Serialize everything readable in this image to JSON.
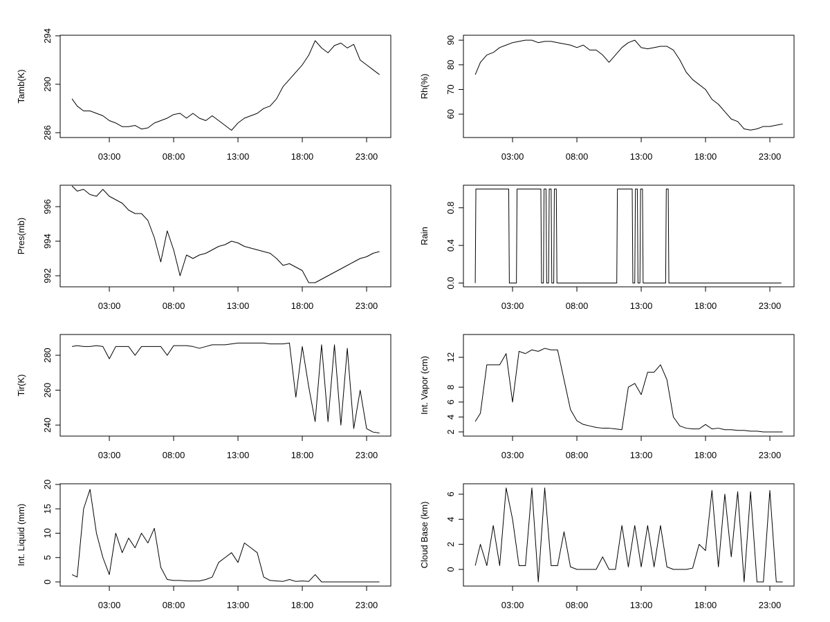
{
  "chart_data": [
    {
      "type": "line",
      "ylabel": "Tamb(K)",
      "x": [
        0.1,
        0.5,
        1,
        1.5,
        2,
        2.5,
        3,
        3.5,
        4,
        4.5,
        5,
        5.5,
        6,
        6.5,
        7,
        7.5,
        8,
        8.5,
        9,
        9.5,
        10,
        10.5,
        11,
        11.5,
        12,
        12.5,
        13,
        13.5,
        14,
        14.5,
        15,
        15.5,
        16,
        16.5,
        17,
        17.5,
        18,
        18.5,
        19,
        19.5,
        20,
        20.5,
        21,
        21.5,
        22,
        22.5,
        23,
        23.5,
        24
      ],
      "values": [
        288.8,
        288.2,
        287.8,
        287.8,
        287.6,
        287.4,
        287.0,
        286.8,
        286.5,
        286.5,
        286.6,
        286.3,
        286.4,
        286.8,
        287.0,
        287.2,
        287.5,
        287.6,
        287.2,
        287.6,
        287.2,
        287.0,
        287.4,
        287.0,
        286.6,
        286.2,
        286.8,
        287.2,
        287.4,
        287.6,
        288.0,
        288.2,
        288.8,
        289.8,
        290.4,
        291.0,
        291.6,
        292.4,
        293.6,
        293.0,
        292.6,
        293.2,
        293.4,
        293.0,
        293.3,
        292.0,
        291.6,
        291.2,
        290.8
      ],
      "color": "#000000",
      "xlim": [
        -0.82,
        24.88
      ],
      "ylim": [
        285.6,
        294.05
      ],
      "yticks": [
        286,
        290,
        294
      ],
      "xticks": [
        {
          "value": 3,
          "label": "03:00"
        },
        {
          "value": 8,
          "label": "08:00"
        },
        {
          "value": 13,
          "label": "13:00"
        },
        {
          "value": 18,
          "label": "18:00"
        },
        {
          "value": 23,
          "label": "23:00"
        }
      ]
    },
    {
      "type": "line",
      "ylabel": "Rh(%)",
      "x": [
        0.1,
        0.5,
        1,
        1.5,
        2,
        2.5,
        3,
        3.5,
        4,
        4.5,
        5,
        5.5,
        6,
        6.5,
        7,
        7.5,
        8,
        8.5,
        9,
        9.5,
        10,
        10.5,
        11,
        11.5,
        12,
        12.5,
        13,
        13.5,
        14,
        14.5,
        15,
        15.5,
        16,
        16.5,
        17,
        17.5,
        18,
        18.5,
        19,
        19.5,
        20,
        20.5,
        21,
        21.5,
        22,
        22.5,
        23,
        23.5,
        24
      ],
      "values": [
        76,
        81,
        84,
        85,
        87,
        88,
        89,
        89.5,
        90,
        90,
        89,
        89.5,
        89.5,
        89,
        88.5,
        88,
        87,
        88,
        86,
        86,
        84,
        81,
        84,
        87,
        89,
        90,
        87,
        86.5,
        87,
        87.5,
        87.5,
        86,
        82,
        77,
        74,
        72,
        70,
        66,
        64,
        61,
        58,
        57,
        54,
        53.5,
        54,
        55,
        55,
        55.5,
        56
      ],
      "color": "#000000",
      "xlim": [
        -0.82,
        24.88
      ],
      "ylim": [
        50.5,
        92
      ],
      "yticks": [
        60,
        70,
        80,
        90
      ],
      "xticks": [
        {
          "value": 3,
          "label": "03:00"
        },
        {
          "value": 8,
          "label": "08:00"
        },
        {
          "value": 13,
          "label": "13:00"
        },
        {
          "value": 18,
          "label": "18:00"
        },
        {
          "value": 23,
          "label": "23:00"
        }
      ]
    },
    {
      "type": "line",
      "ylabel": "Pres(mb)",
      "x": [
        0.1,
        0.5,
        1,
        1.5,
        2,
        2.5,
        3,
        3.5,
        4,
        4.5,
        5,
        5.5,
        6,
        6.5,
        7,
        7.5,
        8,
        8.5,
        9,
        9.5,
        10,
        10.5,
        11,
        11.5,
        12,
        12.5,
        13,
        13.5,
        14,
        14.5,
        15,
        15.5,
        16,
        16.5,
        17,
        17.5,
        18,
        18.5,
        19,
        19.5,
        20,
        20.5,
        21,
        21.5,
        22,
        22.5,
        23,
        23.5,
        24
      ],
      "values": [
        997.2,
        996.9,
        997.0,
        996.7,
        996.6,
        997.0,
        996.6,
        996.4,
        996.2,
        995.8,
        995.6,
        995.6,
        995.2,
        994.2,
        992.8,
        994.6,
        993.5,
        992.0,
        993.2,
        993.0,
        993.2,
        993.3,
        993.5,
        993.7,
        993.8,
        994.0,
        993.9,
        993.7,
        993.6,
        993.5,
        993.4,
        993.3,
        993.0,
        992.6,
        992.7,
        992.5,
        992.3,
        991.6,
        991.6,
        991.8,
        992.0,
        992.2,
        992.4,
        992.6,
        992.8,
        993.0,
        993.1,
        993.3,
        993.4
      ],
      "color": "#000000",
      "xlim": [
        -0.82,
        24.88
      ],
      "ylim": [
        991.36,
        997.24
      ],
      "yticks": [
        992,
        994,
        996
      ],
      "xticks": [
        {
          "value": 3,
          "label": "03:00"
        },
        {
          "value": 8,
          "label": "08:00"
        },
        {
          "value": 13,
          "label": "13:00"
        },
        {
          "value": 18,
          "label": "18:00"
        },
        {
          "value": 23,
          "label": "23:00"
        }
      ]
    },
    {
      "type": "line",
      "ylabel": "Rain",
      "x": [
        0.1,
        0.15,
        2.7,
        2.75,
        3.3,
        3.35,
        5.2,
        5.25,
        5.4,
        5.45,
        5.6,
        5.65,
        5.8,
        5.85,
        6.0,
        6.05,
        6.2,
        6.25,
        6.4,
        6.45,
        11.1,
        11.15,
        12.3,
        12.35,
        12.5,
        12.55,
        12.7,
        12.75,
        12.9,
        12.95,
        13.1,
        13.15,
        14.9,
        14.95,
        15.1,
        15.15,
        23.9
      ],
      "values": [
        0,
        1,
        1,
        0,
        0,
        1,
        1,
        0,
        0,
        1,
        1,
        0,
        0,
        1,
        1,
        0,
        0,
        1,
        1,
        0,
        0,
        1,
        1,
        0,
        0,
        1,
        1,
        0,
        0,
        1,
        1,
        0,
        0,
        1,
        1,
        0,
        0
      ],
      "color": "#000000",
      "xlim": [
        -0.82,
        24.88
      ],
      "ylim": [
        -0.04,
        1.04
      ],
      "yticks": [
        {
          "value": 0,
          "label": "0.0"
        },
        0.4,
        0.8
      ],
      "xticks": [
        {
          "value": 3,
          "label": "03:00"
        },
        {
          "value": 8,
          "label": "08:00"
        },
        {
          "value": 13,
          "label": "13:00"
        },
        {
          "value": 18,
          "label": "18:00"
        },
        {
          "value": 23,
          "label": "23:00"
        }
      ]
    },
    {
      "type": "line",
      "ylabel": "Tir(K)",
      "x": [
        0.1,
        0.5,
        1,
        1.5,
        2,
        2.5,
        3,
        3.5,
        4,
        4.5,
        5,
        5.5,
        6,
        6.5,
        7,
        7.5,
        8,
        8.5,
        9,
        9.5,
        10,
        10.5,
        11,
        11.5,
        12,
        12.5,
        13,
        13.5,
        14,
        14.5,
        15,
        15.5,
        16,
        16.5,
        17,
        17.5,
        18,
        18.5,
        19,
        19.5,
        20,
        20.5,
        21,
        21.5,
        22,
        22.5,
        23,
        23.5,
        24
      ],
      "values": [
        285,
        285.5,
        285,
        285,
        285.5,
        285,
        278,
        285,
        285,
        285,
        280,
        285,
        285,
        285,
        285,
        280,
        285.5,
        285.5,
        285.5,
        285,
        284,
        285,
        286,
        286,
        286,
        286.5,
        287,
        287,
        287,
        287,
        287,
        286.5,
        286.5,
        286.5,
        287,
        256,
        285,
        262,
        242,
        286,
        242,
        286,
        240,
        284,
        238,
        260,
        238,
        236,
        235.5
      ],
      "color": "#000000",
      "xlim": [
        -0.82,
        24.88
      ],
      "ylim": [
        233.7,
        291.9
      ],
      "yticks": [
        240,
        260,
        280
      ],
      "xticks": [
        {
          "value": 3,
          "label": "03:00"
        },
        {
          "value": 8,
          "label": "08:00"
        },
        {
          "value": 13,
          "label": "13:00"
        },
        {
          "value": 18,
          "label": "18:00"
        },
        {
          "value": 23,
          "label": "23:00"
        }
      ]
    },
    {
      "type": "line",
      "ylabel": "Int. Vapor (cm)",
      "x": [
        0.1,
        0.5,
        1,
        1.5,
        2,
        2.5,
        3,
        3.5,
        4,
        4.5,
        5,
        5.5,
        6,
        6.5,
        7,
        7.5,
        8,
        8.5,
        9,
        9.5,
        10,
        10.5,
        11,
        11.5,
        12,
        12.5,
        13,
        13.5,
        14,
        14.5,
        15,
        15.5,
        16,
        16.5,
        17,
        17.5,
        18,
        18.5,
        19,
        19.5,
        20,
        20.5,
        21,
        21.5,
        22,
        22.5,
        23,
        23.5,
        24
      ],
      "values": [
        3.4,
        4.5,
        11,
        11,
        11,
        12.5,
        6,
        12.8,
        12.5,
        13,
        12.8,
        13.2,
        13,
        13,
        9,
        5,
        3.5,
        3,
        2.8,
        2.6,
        2.5,
        2.5,
        2.4,
        2.3,
        8,
        8.5,
        7,
        10,
        10,
        11,
        9,
        4,
        2.8,
        2.5,
        2.4,
        2.4,
        3,
        2.4,
        2.5,
        2.3,
        2.3,
        2.2,
        2.2,
        2.1,
        2.1,
        2.0,
        2.0,
        2.0,
        2.0
      ],
      "color": "#000000",
      "xlim": [
        -0.82,
        24.88
      ],
      "ylim": [
        1.44,
        15.06
      ],
      "yticks": [
        2,
        4,
        6,
        8,
        12
      ],
      "xticks": [
        {
          "value": 3,
          "label": "03:00"
        },
        {
          "value": 8,
          "label": "08:00"
        },
        {
          "value": 13,
          "label": "13:00"
        },
        {
          "value": 18,
          "label": "18:00"
        },
        {
          "value": 23,
          "label": "23:00"
        }
      ]
    },
    {
      "type": "line",
      "ylabel": "Int. Liquid (mm)",
      "x": [
        0.1,
        0.5,
        1,
        1.5,
        2,
        2.5,
        3,
        3.5,
        4,
        4.5,
        5,
        5.5,
        6,
        6.5,
        7,
        7.5,
        8,
        8.5,
        9,
        9.5,
        10,
        10.5,
        11,
        11.5,
        12,
        12.5,
        13,
        13.5,
        14,
        14.5,
        15,
        15.5,
        16,
        16.5,
        17,
        17.5,
        18,
        18.5,
        19,
        19.5,
        20,
        20.5,
        21,
        21.5,
        22,
        22.5,
        23,
        23.5,
        24
      ],
      "values": [
        1.5,
        1,
        15,
        19,
        10,
        5,
        1.5,
        10,
        6,
        9,
        7,
        10,
        8,
        11,
        3,
        0.5,
        0.3,
        0.3,
        0.2,
        0.2,
        0.2,
        0.5,
        1,
        4,
        5,
        6,
        4,
        8,
        7,
        6,
        1,
        0.3,
        0.2,
        0.1,
        0.5,
        0.1,
        0.2,
        0.1,
        1.5,
        0,
        0,
        0,
        0,
        0,
        0,
        0,
        0,
        0,
        0
      ],
      "color": "#000000",
      "xlim": [
        -0.82,
        24.88
      ],
      "ylim": [
        -0.85,
        20.14
      ],
      "yticks": [
        0,
        5,
        10,
        15,
        20
      ],
      "xticks": [
        {
          "value": 3,
          "label": "03:00"
        },
        {
          "value": 8,
          "label": "08:00"
        },
        {
          "value": 13,
          "label": "13:00"
        },
        {
          "value": 18,
          "label": "18:00"
        },
        {
          "value": 23,
          "label": "23:00"
        }
      ]
    },
    {
      "type": "line",
      "ylabel": "Cloud Base (km)",
      "x": [
        0.1,
        0.5,
        1,
        1.5,
        2,
        2.5,
        3,
        3.5,
        4,
        4.5,
        5,
        5.5,
        6,
        6.5,
        7,
        7.5,
        8,
        8.5,
        9,
        9.5,
        10,
        10.5,
        11,
        11.5,
        12,
        12.5,
        13,
        13.5,
        14,
        14.5,
        15,
        15.5,
        16,
        16.5,
        17,
        17.5,
        18,
        18.5,
        19,
        19.5,
        20,
        20.5,
        21,
        21.5,
        22,
        22.5,
        23,
        23.5,
        24
      ],
      "values": [
        0.3,
        2,
        0.3,
        3.5,
        0.3,
        6.5,
        4,
        0.3,
        0.3,
        6.5,
        -1,
        6.5,
        0.3,
        0.3,
        3,
        0.2,
        0,
        0,
        0,
        0,
        1,
        0,
        0,
        3.5,
        0.2,
        3.5,
        0.2,
        3.5,
        0.2,
        3.5,
        0.2,
        0,
        0,
        0,
        0.1,
        2,
        1.5,
        6.3,
        0.2,
        6,
        1,
        6.2,
        -1,
        6.2,
        -1,
        -1,
        6.3,
        -1,
        -1
      ],
      "color": "#000000",
      "xlim": [
        -0.82,
        24.88
      ],
      "ylim": [
        -1.33,
        6.83
      ],
      "yticks": [
        0,
        2,
        4,
        6
      ],
      "xticks": [
        {
          "value": 3,
          "label": "03:00"
        },
        {
          "value": 8,
          "label": "08:00"
        },
        {
          "value": 13,
          "label": "13:00"
        },
        {
          "value": 18,
          "label": "18:00"
        },
        {
          "value": 23,
          "label": "23:00"
        }
      ]
    }
  ]
}
